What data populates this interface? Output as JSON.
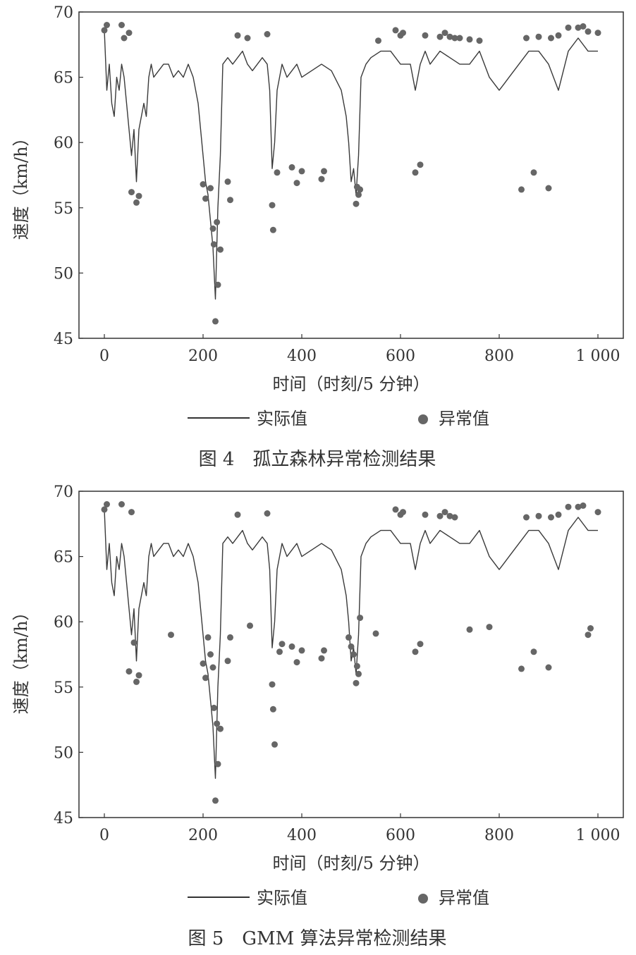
{
  "figures": [
    {
      "caption": "图 4　孤立森林异常检测结果",
      "xlabel": "时间（时刻/5 分钟）",
      "ylabel": "速度（km/h）",
      "legend": {
        "line": "实际值",
        "points": "异常值"
      }
    },
    {
      "caption": "图 5　GMM 算法异常检测结果",
      "xlabel": "时间（时刻/5 分钟）",
      "ylabel": "速度（km/h）",
      "legend": {
        "line": "实际值",
        "points": "异常值"
      }
    }
  ],
  "colors": {
    "line": "#3a3a3a",
    "points": "#666666",
    "frame": "#333333"
  },
  "chart_data": [
    {
      "type": "line",
      "xlim": [
        0,
        1000
      ],
      "ylim": [
        45,
        70
      ],
      "xticks": [
        0,
        200,
        400,
        600,
        800,
        1000
      ],
      "xtick_labels": [
        "0",
        "200",
        "400",
        "600",
        "800",
        "1 000"
      ],
      "yticks": [
        45,
        50,
        55,
        60,
        65,
        70
      ],
      "series": [
        {
          "kind": "line",
          "x": [
            0,
            5,
            10,
            15,
            20,
            25,
            30,
            35,
            40,
            45,
            50,
            55,
            60,
            65,
            70,
            75,
            80,
            85,
            90,
            95,
            100,
            110,
            120,
            130,
            140,
            150,
            160,
            170,
            180,
            190,
            195,
            200,
            205,
            210,
            215,
            220,
            225,
            230,
            235,
            240,
            250,
            260,
            270,
            280,
            290,
            300,
            310,
            320,
            330,
            335,
            340,
            345,
            350,
            360,
            370,
            380,
            390,
            400,
            420,
            440,
            460,
            480,
            490,
            495,
            500,
            505,
            510,
            515,
            520,
            530,
            540,
            560,
            580,
            600,
            620,
            630,
            640,
            650,
            660,
            680,
            700,
            720,
            740,
            760,
            780,
            800,
            810,
            820,
            840,
            860,
            880,
            900,
            920,
            940,
            960,
            980,
            1000
          ],
          "y": [
            68.6,
            64,
            66,
            63,
            62,
            65,
            64,
            66,
            65,
            63,
            61,
            59,
            61,
            57,
            61,
            62,
            63,
            62,
            65,
            66,
            65,
            65.5,
            66,
            66,
            65,
            65.5,
            65,
            66,
            65,
            63,
            61,
            59,
            57,
            56,
            54,
            52,
            48,
            55,
            59,
            66,
            66.5,
            66,
            66.5,
            67,
            66,
            65.5,
            66,
            66.5,
            66,
            64,
            58,
            60,
            64,
            66,
            65,
            65.5,
            66,
            65,
            65.5,
            66,
            65.5,
            64,
            62,
            60,
            57,
            58,
            56,
            59,
            65,
            66,
            66.5,
            67,
            67,
            66,
            66,
            64,
            66,
            67,
            66,
            67,
            66.5,
            66,
            66,
            67,
            65,
            64,
            64.5,
            65,
            66,
            67,
            67,
            66,
            64,
            67,
            68,
            67,
            67
          ]
        },
        {
          "kind": "scatter",
          "name": "异常值",
          "x": [
            0,
            5,
            35,
            40,
            55,
            50,
            65,
            70,
            200,
            205,
            215,
            220,
            222,
            225,
            228,
            230,
            235,
            250,
            255,
            270,
            290,
            330,
            340,
            342,
            350,
            380,
            390,
            400,
            440,
            445,
            510,
            512,
            515,
            518,
            555,
            590,
            600,
            605,
            630,
            640,
            650,
            680,
            690,
            700,
            710,
            720,
            740,
            760,
            845,
            855,
            870,
            880,
            900,
            905,
            920,
            940,
            960,
            970,
            980,
            1000
          ],
          "y": [
            68.6,
            69,
            69,
            68,
            56.2,
            68.4,
            55.4,
            55.9,
            56.8,
            55.7,
            56.5,
            53.4,
            52.2,
            46.3,
            53.9,
            49.1,
            51.8,
            57,
            55.6,
            68.2,
            68,
            68.3,
            55.2,
            53.3,
            57.7,
            58.1,
            56.9,
            57.8,
            57.2,
            57.8,
            55.3,
            56.6,
            56,
            56.4,
            67.8,
            68.6,
            68.2,
            68.4,
            57.7,
            58.3,
            68.2,
            68.1,
            68.4,
            68.1,
            68,
            68,
            67.9,
            67.8,
            56.4,
            68,
            57.7,
            68.1,
            56.5,
            68,
            68.2,
            68.8,
            68.8,
            68.9,
            68.5,
            68.4
          ]
        }
      ]
    },
    {
      "type": "line",
      "xlim": [
        0,
        1000
      ],
      "ylim": [
        45,
        70
      ],
      "xticks": [
        0,
        200,
        400,
        600,
        800,
        1000
      ],
      "xtick_labels": [
        "0",
        "200",
        "400",
        "600",
        "800",
        "1 000"
      ],
      "yticks": [
        45,
        50,
        55,
        60,
        65,
        70
      ],
      "series": [
        {
          "kind": "line",
          "x": [
            0,
            5,
            10,
            15,
            20,
            25,
            30,
            35,
            40,
            45,
            50,
            55,
            60,
            65,
            70,
            75,
            80,
            85,
            90,
            95,
            100,
            110,
            120,
            130,
            140,
            150,
            160,
            170,
            180,
            190,
            195,
            200,
            205,
            210,
            215,
            220,
            225,
            230,
            235,
            240,
            250,
            260,
            270,
            280,
            290,
            300,
            310,
            320,
            330,
            335,
            340,
            345,
            350,
            360,
            370,
            380,
            390,
            400,
            420,
            440,
            460,
            480,
            490,
            495,
            500,
            505,
            510,
            515,
            520,
            530,
            540,
            560,
            580,
            600,
            620,
            630,
            640,
            650,
            660,
            680,
            700,
            720,
            740,
            760,
            780,
            800,
            810,
            820,
            840,
            860,
            880,
            900,
            920,
            940,
            960,
            980,
            1000
          ],
          "y": [
            68.6,
            64,
            66,
            63,
            62,
            65,
            64,
            66,
            65,
            63,
            61,
            59,
            61,
            57,
            61,
            62,
            63,
            62,
            65,
            66,
            65,
            65.5,
            66,
            66,
            65,
            65.5,
            65,
            66,
            65,
            63,
            61,
            59,
            57,
            56,
            54,
            52,
            48,
            55,
            59,
            66,
            66.5,
            66,
            66.5,
            67,
            66,
            65.5,
            66,
            66.5,
            66,
            64,
            58,
            60,
            64,
            66,
            65,
            65.5,
            66,
            65,
            65.5,
            66,
            65.5,
            64,
            62,
            60,
            57,
            58,
            56,
            59,
            65,
            66,
            66.5,
            67,
            67,
            66,
            66,
            64,
            66,
            67,
            66,
            67,
            66.5,
            66,
            66,
            67,
            65,
            64,
            64.5,
            65,
            66,
            67,
            67,
            66,
            64,
            67,
            68,
            67,
            67
          ]
        },
        {
          "kind": "scatter",
          "name": "异常值",
          "x": [
            0,
            5,
            35,
            50,
            55,
            60,
            65,
            70,
            135,
            200,
            205,
            210,
            215,
            220,
            222,
            225,
            228,
            230,
            235,
            250,
            255,
            270,
            295,
            330,
            340,
            342,
            345,
            355,
            360,
            380,
            390,
            400,
            440,
            445,
            495,
            500,
            505,
            510,
            512,
            515,
            518,
            550,
            590,
            600,
            605,
            630,
            640,
            650,
            680,
            690,
            700,
            710,
            740,
            780,
            845,
            855,
            870,
            880,
            900,
            905,
            920,
            940,
            960,
            970,
            980,
            985,
            1000
          ],
          "y": [
            68.6,
            69,
            69,
            56.2,
            68.4,
            58.4,
            55.4,
            55.9,
            59,
            56.8,
            55.7,
            58.8,
            57.5,
            56.5,
            53.4,
            46.3,
            52.2,
            49.1,
            51.8,
            57,
            58.8,
            68.2,
            59.7,
            68.3,
            55.2,
            53.3,
            50.6,
            57.7,
            58.3,
            58.1,
            56.9,
            57.8,
            57.2,
            57.8,
            58.8,
            58.1,
            57.5,
            55.3,
            56.6,
            56,
            60.3,
            59.1,
            68.6,
            68.2,
            68.4,
            57.7,
            58.3,
            68.2,
            68.1,
            68.4,
            68.1,
            68,
            59.4,
            59.6,
            56.4,
            68,
            57.7,
            68.1,
            56.5,
            68,
            68.2,
            68.8,
            68.8,
            68.9,
            59,
            59.5,
            68.4
          ]
        }
      ]
    }
  ]
}
